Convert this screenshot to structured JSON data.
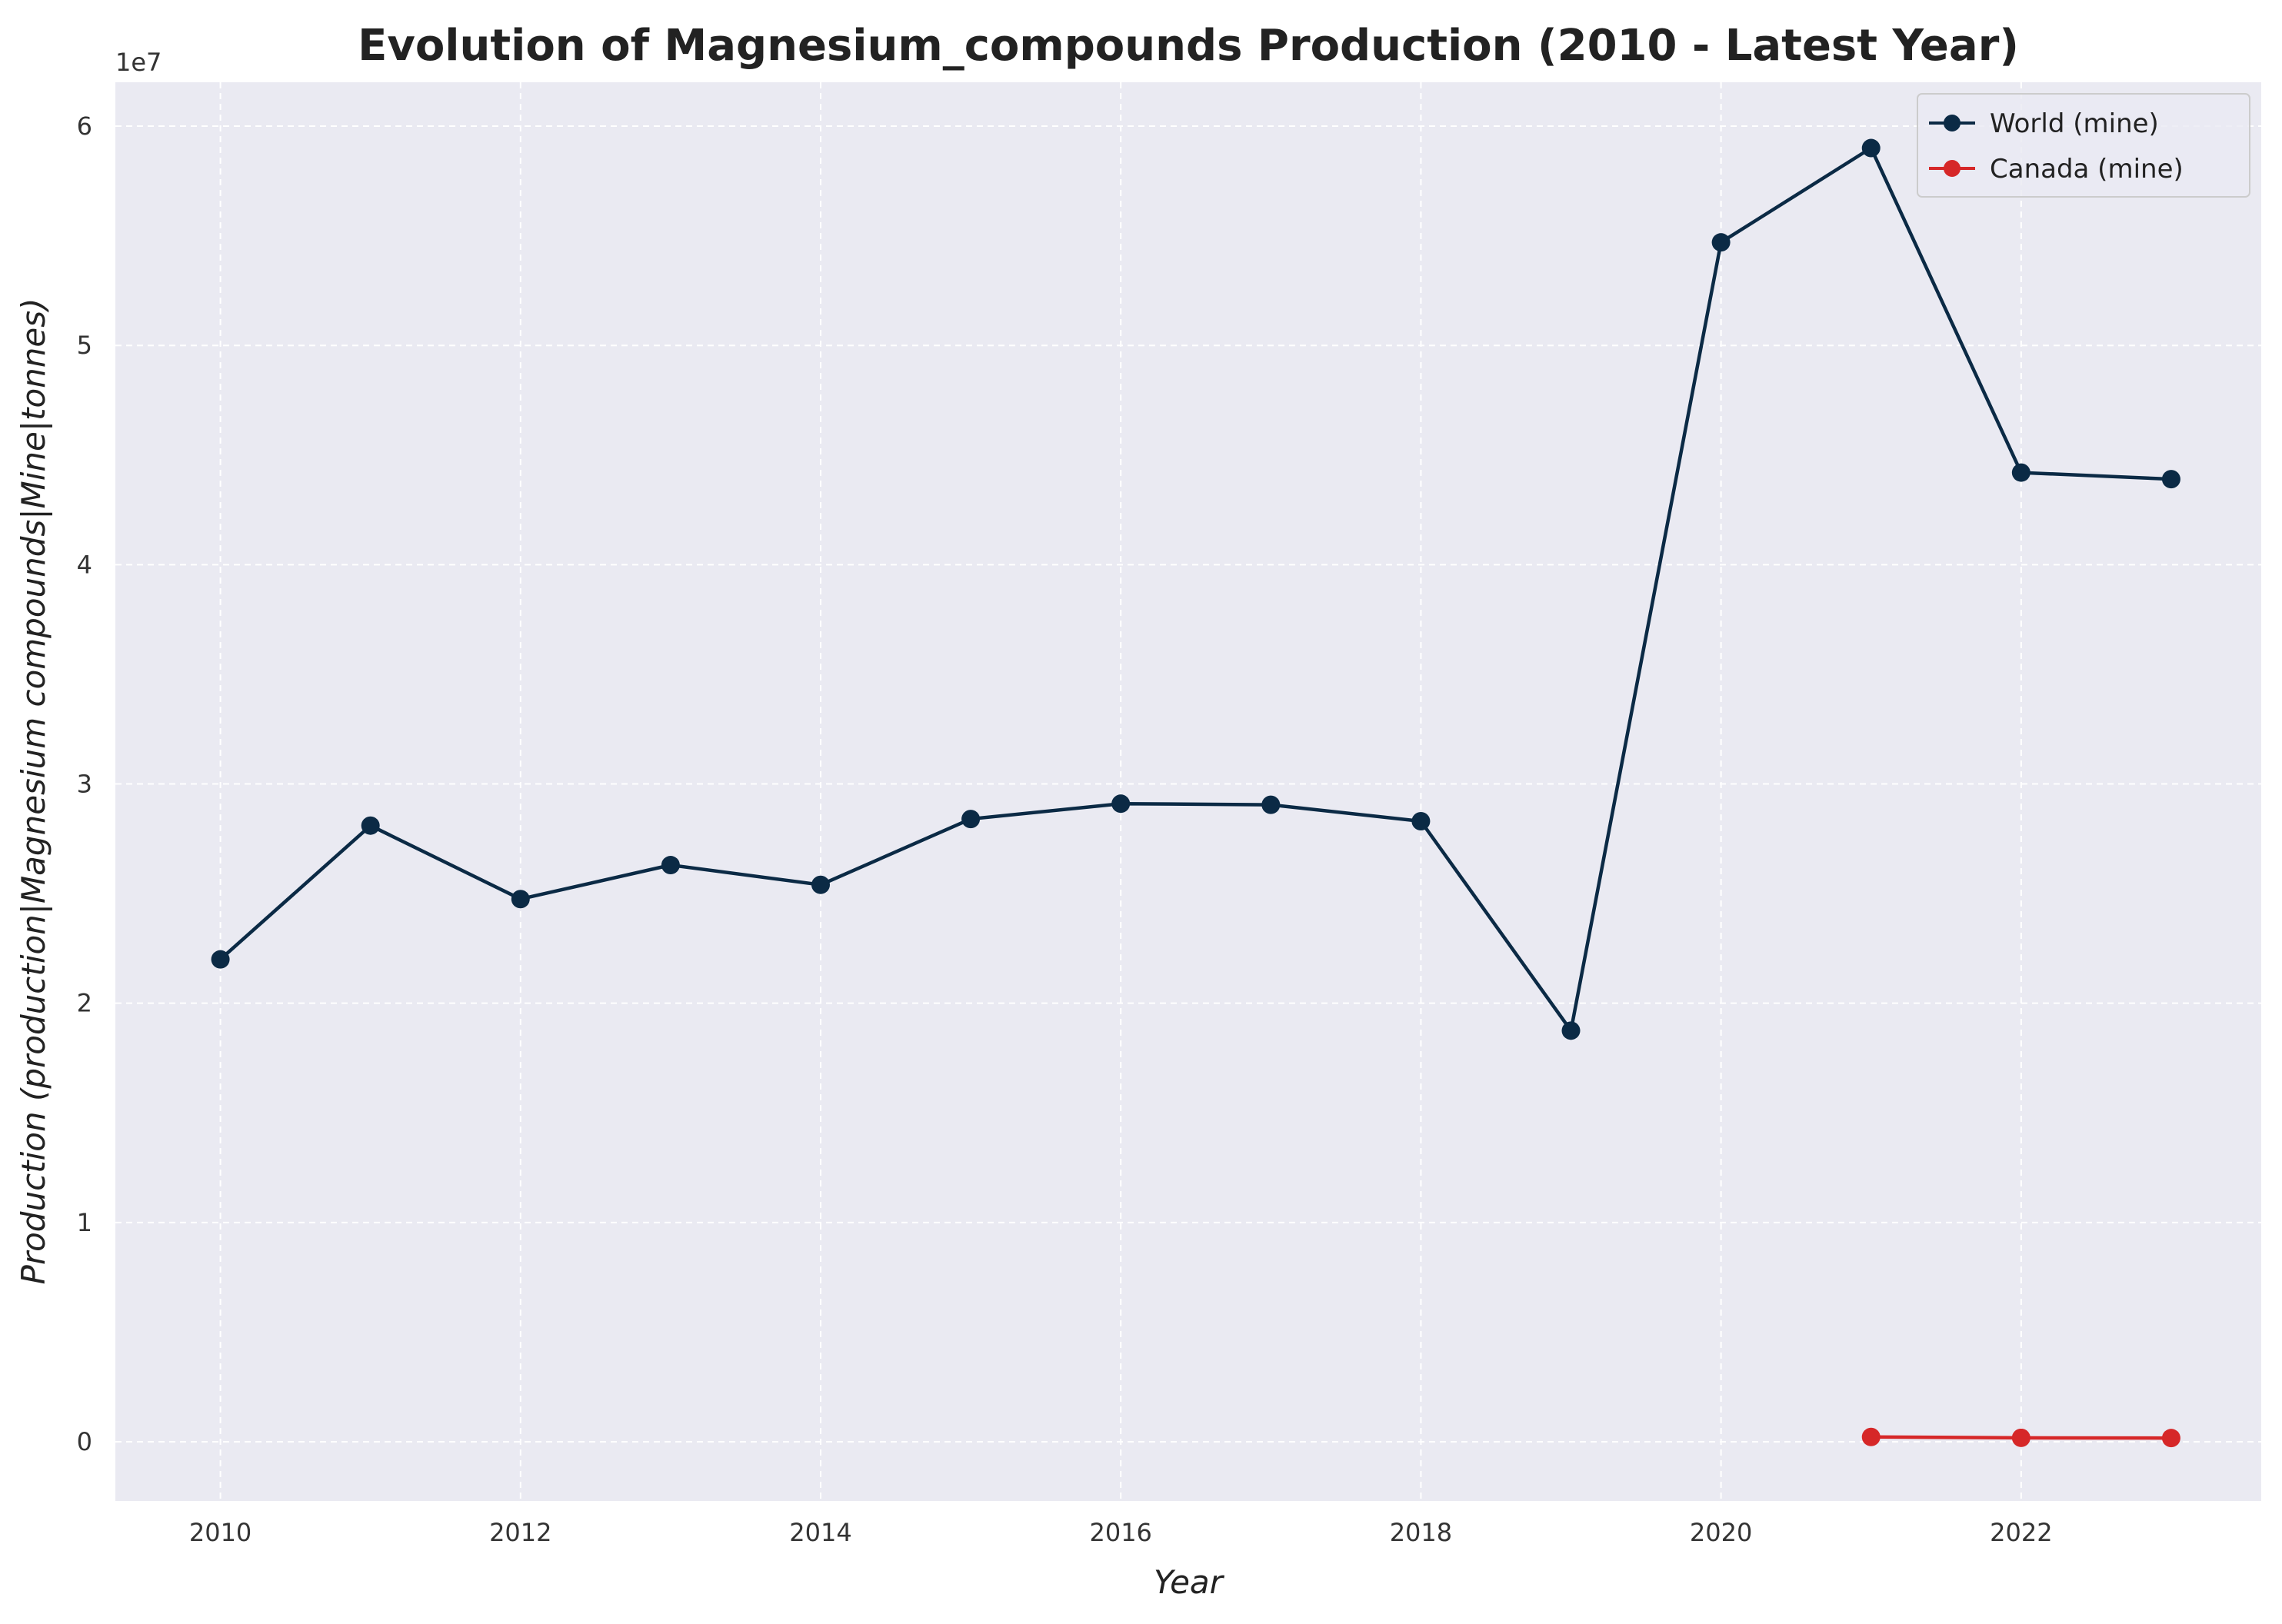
{
  "chart_data": {
    "type": "line",
    "title": "Evolution of Magnesium_compounds Production (2010 - Latest Year)",
    "xlabel": "Year",
    "ylabel": "Production (production|Magnesium compounds|Mine|tonnes)",
    "offset_label": "1e7",
    "x_ticks": [
      "2010",
      "2012",
      "2014",
      "2016",
      "2018",
      "2020",
      "2022"
    ],
    "y_ticks": [
      "0",
      "1",
      "2",
      "3",
      "4",
      "5",
      "6"
    ],
    "xlim": [
      2009.3,
      2023.6
    ],
    "ylim": [
      -2700000,
      62000000
    ],
    "grid": true,
    "legend_position": "top-right",
    "series": [
      {
        "name": "World (mine)",
        "color": "#0b2a45",
        "x": [
          2010,
          2011,
          2012,
          2013,
          2014,
          2015,
          2016,
          2017,
          2018,
          2019,
          2020,
          2021,
          2022,
          2023
        ],
        "values": [
          22000000,
          28100000,
          24750000,
          26300000,
          25400000,
          28400000,
          29100000,
          29050000,
          28300000,
          18750000,
          54700000,
          59000000,
          44200000,
          43900000
        ]
      },
      {
        "name": "Canada (mine)",
        "color": "#d62728",
        "x": [
          2021,
          2022,
          2023
        ],
        "values": [
          220000,
          180000,
          170000
        ]
      }
    ]
  }
}
